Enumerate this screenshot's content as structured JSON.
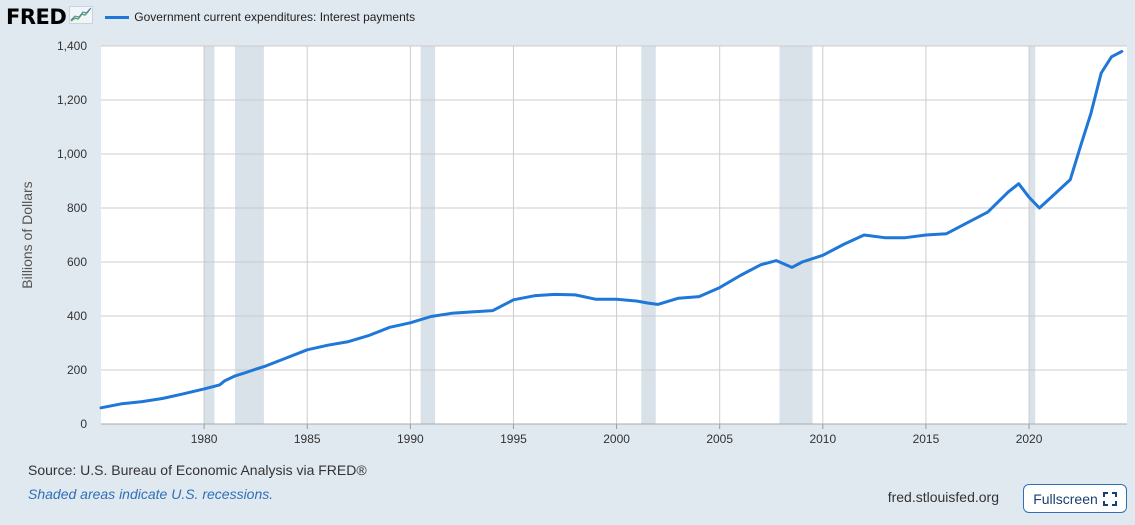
{
  "header": {
    "logo_text": "FRED",
    "logo_graph_icon": "trend-graph-icon"
  },
  "colors": {
    "series": "#1f77d8",
    "recession": "#d9e1e9",
    "grid": "#cccccc",
    "plot_bg": "#ffffff",
    "page_bg": "#e1e9f0"
  },
  "footer": {
    "source": "Source: U.S. Bureau of Economic Analysis via FRED®",
    "note": "Shaded areas indicate U.S. recessions.",
    "url": "fred.stlouisfed.org",
    "fullscreen_label": "Fullscreen",
    "fullscreen_icon": "expand-icon"
  },
  "chart_data": {
    "type": "line",
    "ylabel": "Billions of Dollars",
    "xlim": [
      1975,
      2024.75
    ],
    "ylim": [
      0,
      1400
    ],
    "yticks": [
      0,
      200,
      400,
      600,
      800,
      1000,
      1200,
      1400
    ],
    "ytick_labels": [
      "0",
      "200",
      "400",
      "600",
      "800",
      "1,000",
      "1,200",
      "1,400"
    ],
    "xticks": [
      1980,
      1985,
      1990,
      1995,
      2000,
      2005,
      2010,
      2015,
      2020
    ],
    "xtick_labels": [
      "1980",
      "1985",
      "1990",
      "1995",
      "2000",
      "2005",
      "2010",
      "2015",
      "2020"
    ],
    "grid": true,
    "legend_position": "top-left",
    "recessions": [
      [
        1980.0,
        1980.5
      ],
      [
        1981.5,
        1982.9
      ],
      [
        1990.5,
        1991.2
      ],
      [
        2001.2,
        2001.9
      ],
      [
        2007.9,
        2009.5
      ],
      [
        2020.0,
        2020.3
      ]
    ],
    "series": [
      {
        "name": "Government current expenditures: Interest payments",
        "x": [
          1975.0,
          1976.0,
          1977.0,
          1978.0,
          1979.0,
          1980.0,
          1980.75,
          1981.0,
          1981.5,
          1982.0,
          1982.5,
          1983.0,
          1984.0,
          1985.0,
          1986.0,
          1987.0,
          1988.0,
          1989.0,
          1990.0,
          1991.0,
          1992.0,
          1993.0,
          1994.0,
          1995.0,
          1996.0,
          1997.0,
          1998.0,
          1999.0,
          2000.0,
          2001.0,
          2001.5,
          2002.0,
          2003.0,
          2004.0,
          2005.0,
          2006.0,
          2007.0,
          2007.75,
          2008.5,
          2009.0,
          2010.0,
          2011.0,
          2012.0,
          2013.0,
          2014.0,
          2015.0,
          2016.0,
          2017.0,
          2018.0,
          2019.0,
          2019.5,
          2020.0,
          2020.5,
          2021.0,
          2021.5,
          2022.0,
          2022.5,
          2023.0,
          2023.5,
          2024.0,
          2024.5
        ],
        "values": [
          60,
          75,
          83,
          95,
          112,
          130,
          145,
          160,
          178,
          190,
          203,
          215,
          245,
          275,
          292,
          305,
          328,
          358,
          375,
          398,
          410,
          415,
          420,
          460,
          475,
          480,
          478,
          462,
          462,
          455,
          448,
          443,
          466,
          472,
          505,
          550,
          590,
          605,
          580,
          600,
          625,
          665,
          700,
          690,
          690,
          700,
          705,
          745,
          785,
          860,
          890,
          840,
          800,
          835,
          870,
          905,
          1030,
          1150,
          1300,
          1360,
          1380
        ]
      }
    ]
  }
}
